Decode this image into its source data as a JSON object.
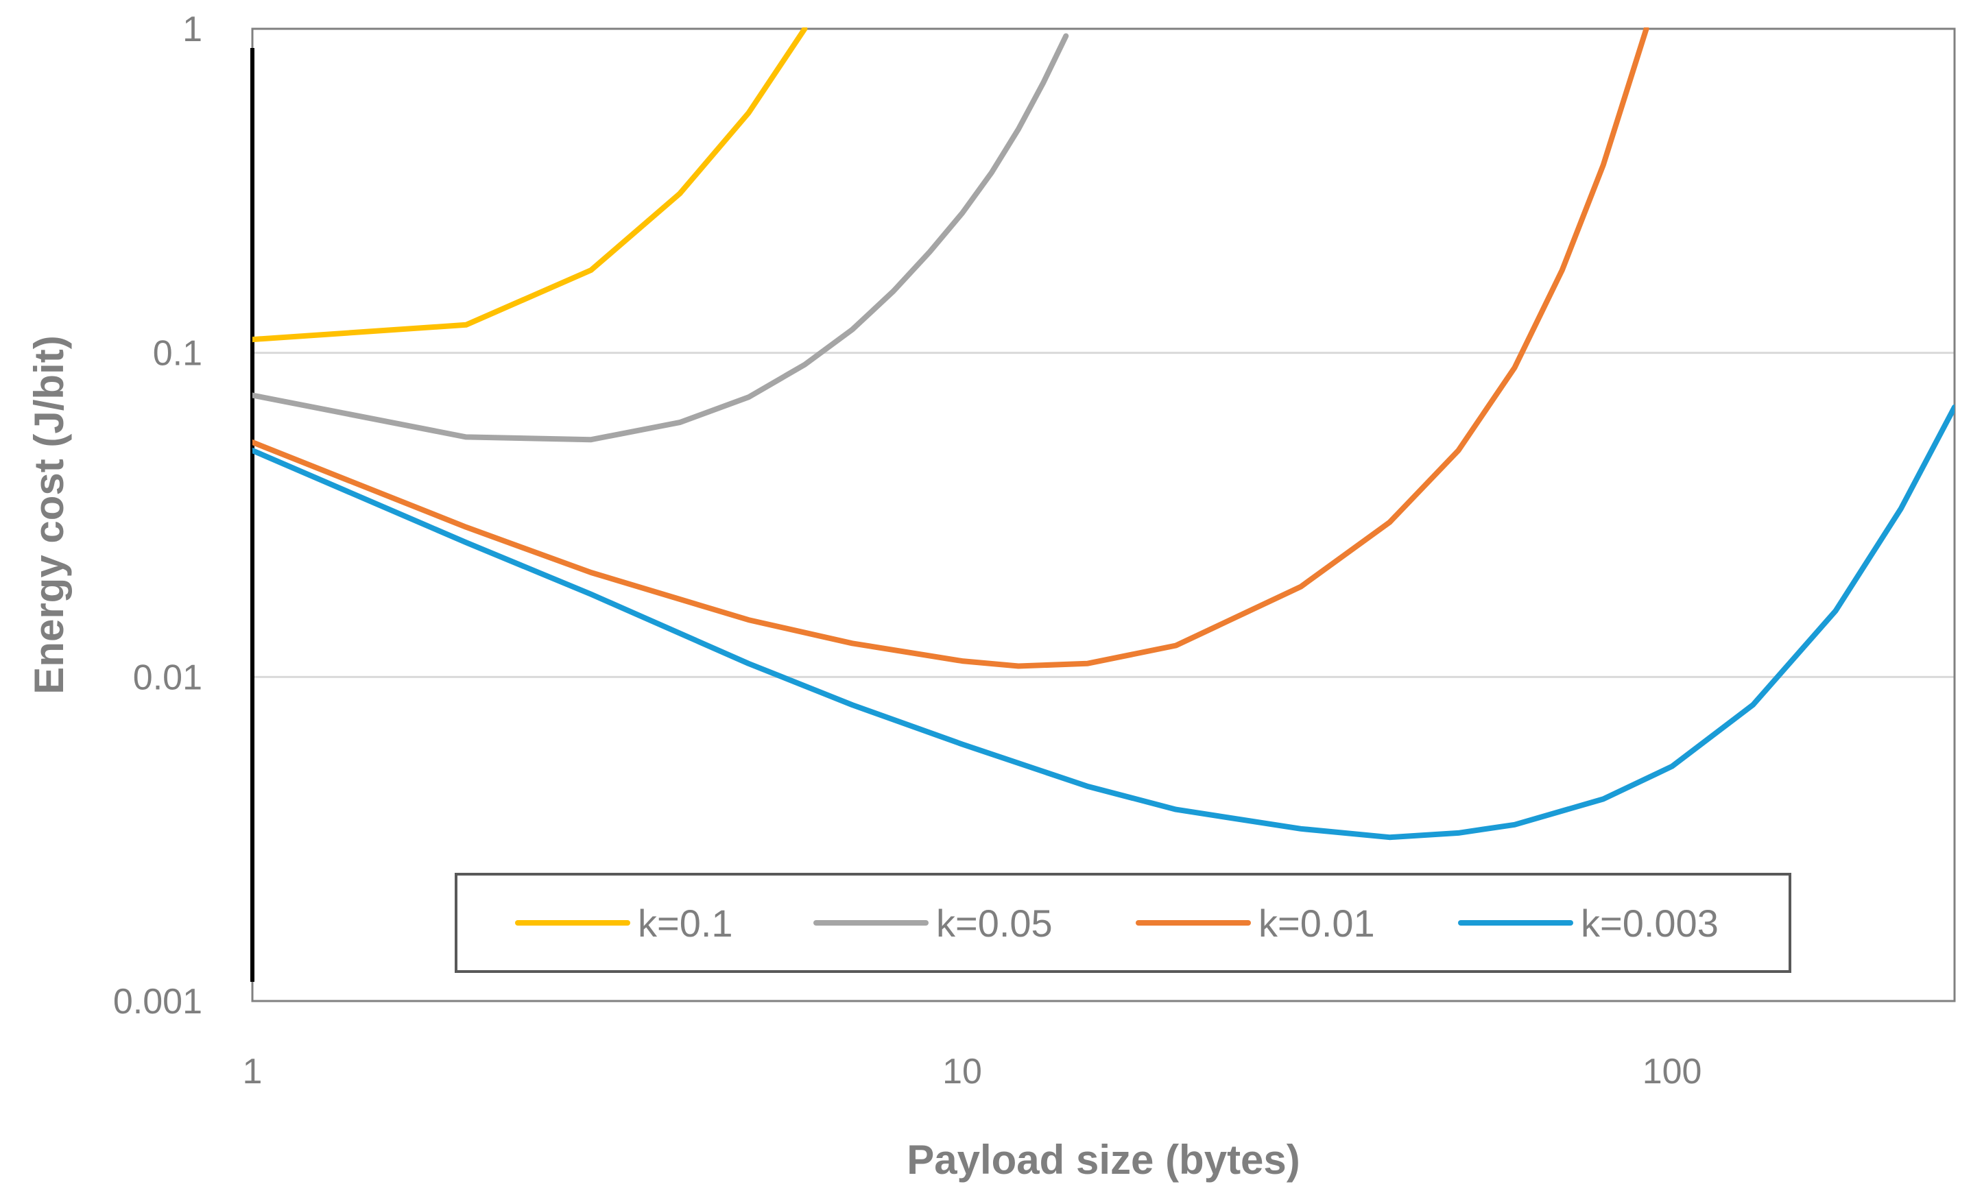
{
  "chart_data": {
    "type": "line",
    "title": "",
    "xlabel": "Payload size (bytes)",
    "ylabel": "Energy cost (J/bit)",
    "x_scale": "log",
    "y_scale": "log",
    "xlim": [
      1,
      250
    ],
    "ylim": [
      0.001,
      1
    ],
    "x_ticks": [
      "1",
      "10",
      "100"
    ],
    "y_ticks": [
      "0.001",
      "0.01",
      "0.1",
      "1"
    ],
    "grid": "horizontal major gridlines",
    "legend_position": "bottom-center inside plot",
    "series": [
      {
        "name": "k=0.1",
        "color": "#ffc000",
        "x": [
          1,
          2,
          3,
          4,
          5,
          6
        ],
        "y": [
          0.11,
          0.122,
          0.18,
          0.31,
          0.55,
          1.0
        ]
      },
      {
        "name": "k=0.05",
        "color": "#a5a5a5",
        "x": [
          1,
          2,
          3,
          4,
          5,
          6,
          7,
          8,
          9,
          10,
          11,
          12,
          13,
          14
        ],
        "y": [
          0.074,
          0.055,
          0.054,
          0.061,
          0.073,
          0.092,
          0.118,
          0.155,
          0.205,
          0.27,
          0.36,
          0.49,
          0.68,
          0.95
        ]
      },
      {
        "name": "k=0.01",
        "color": "#ed7d31",
        "x": [
          1,
          2,
          3,
          5,
          7,
          10,
          12,
          15,
          20,
          30,
          40,
          50,
          60,
          70,
          80,
          92
        ],
        "y": [
          0.053,
          0.029,
          0.021,
          0.015,
          0.0127,
          0.0112,
          0.0108,
          0.011,
          0.0125,
          0.019,
          0.03,
          0.05,
          0.09,
          0.18,
          0.38,
          1.0
        ]
      },
      {
        "name": "k=0.003",
        "color": "#1a9bd6",
        "x": [
          1,
          2,
          3,
          5,
          7,
          10,
          15,
          20,
          30,
          40,
          50,
          60,
          80,
          100,
          130,
          170,
          210,
          250
        ],
        "y": [
          0.05,
          0.026,
          0.018,
          0.011,
          0.0082,
          0.0062,
          0.0046,
          0.0039,
          0.0034,
          0.0032,
          0.0033,
          0.0035,
          0.0042,
          0.0053,
          0.0082,
          0.016,
          0.033,
          0.068
        ]
      }
    ]
  }
}
